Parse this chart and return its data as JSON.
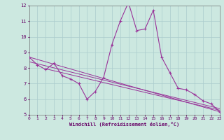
{
  "background_color": "#cce8e0",
  "grid_color": "#aacccc",
  "line_color": "#993399",
  "marker_color": "#993399",
  "xlabel": "Windchill (Refroidissement éolien,°C)",
  "xlabel_color": "#660066",
  "tick_color": "#660066",
  "xlim": [
    0,
    23
  ],
  "ylim": [
    5,
    12
  ],
  "yticks": [
    5,
    6,
    7,
    8,
    9,
    10,
    11,
    12
  ],
  "xticks": [
    0,
    1,
    2,
    3,
    4,
    5,
    6,
    7,
    8,
    9,
    10,
    11,
    12,
    13,
    14,
    15,
    16,
    17,
    18,
    19,
    20,
    21,
    22,
    23
  ],
  "series": [
    [
      0,
      8.7
    ],
    [
      1,
      8.2
    ],
    [
      2,
      7.9
    ],
    [
      3,
      8.3
    ],
    [
      4,
      7.5
    ],
    [
      5,
      7.3
    ],
    [
      6,
      7.0
    ],
    [
      7,
      6.0
    ],
    [
      8,
      6.5
    ],
    [
      9,
      7.4
    ],
    [
      10,
      9.5
    ],
    [
      11,
      11.0
    ],
    [
      12,
      12.2
    ],
    [
      13,
      10.4
    ],
    [
      14,
      10.5
    ],
    [
      15,
      11.7
    ],
    [
      16,
      8.7
    ],
    [
      17,
      7.7
    ],
    [
      18,
      6.7
    ],
    [
      19,
      6.6
    ],
    [
      20,
      6.3
    ],
    [
      21,
      5.9
    ],
    [
      22,
      5.7
    ],
    [
      23,
      5.2
    ]
  ],
  "line2": [
    [
      0,
      8.7
    ],
    [
      23,
      5.2
    ]
  ],
  "line3": [
    [
      0,
      8.4
    ],
    [
      23,
      5.4
    ]
  ],
  "line4": [
    [
      2,
      7.95
    ],
    [
      23,
      5.3
    ]
  ]
}
